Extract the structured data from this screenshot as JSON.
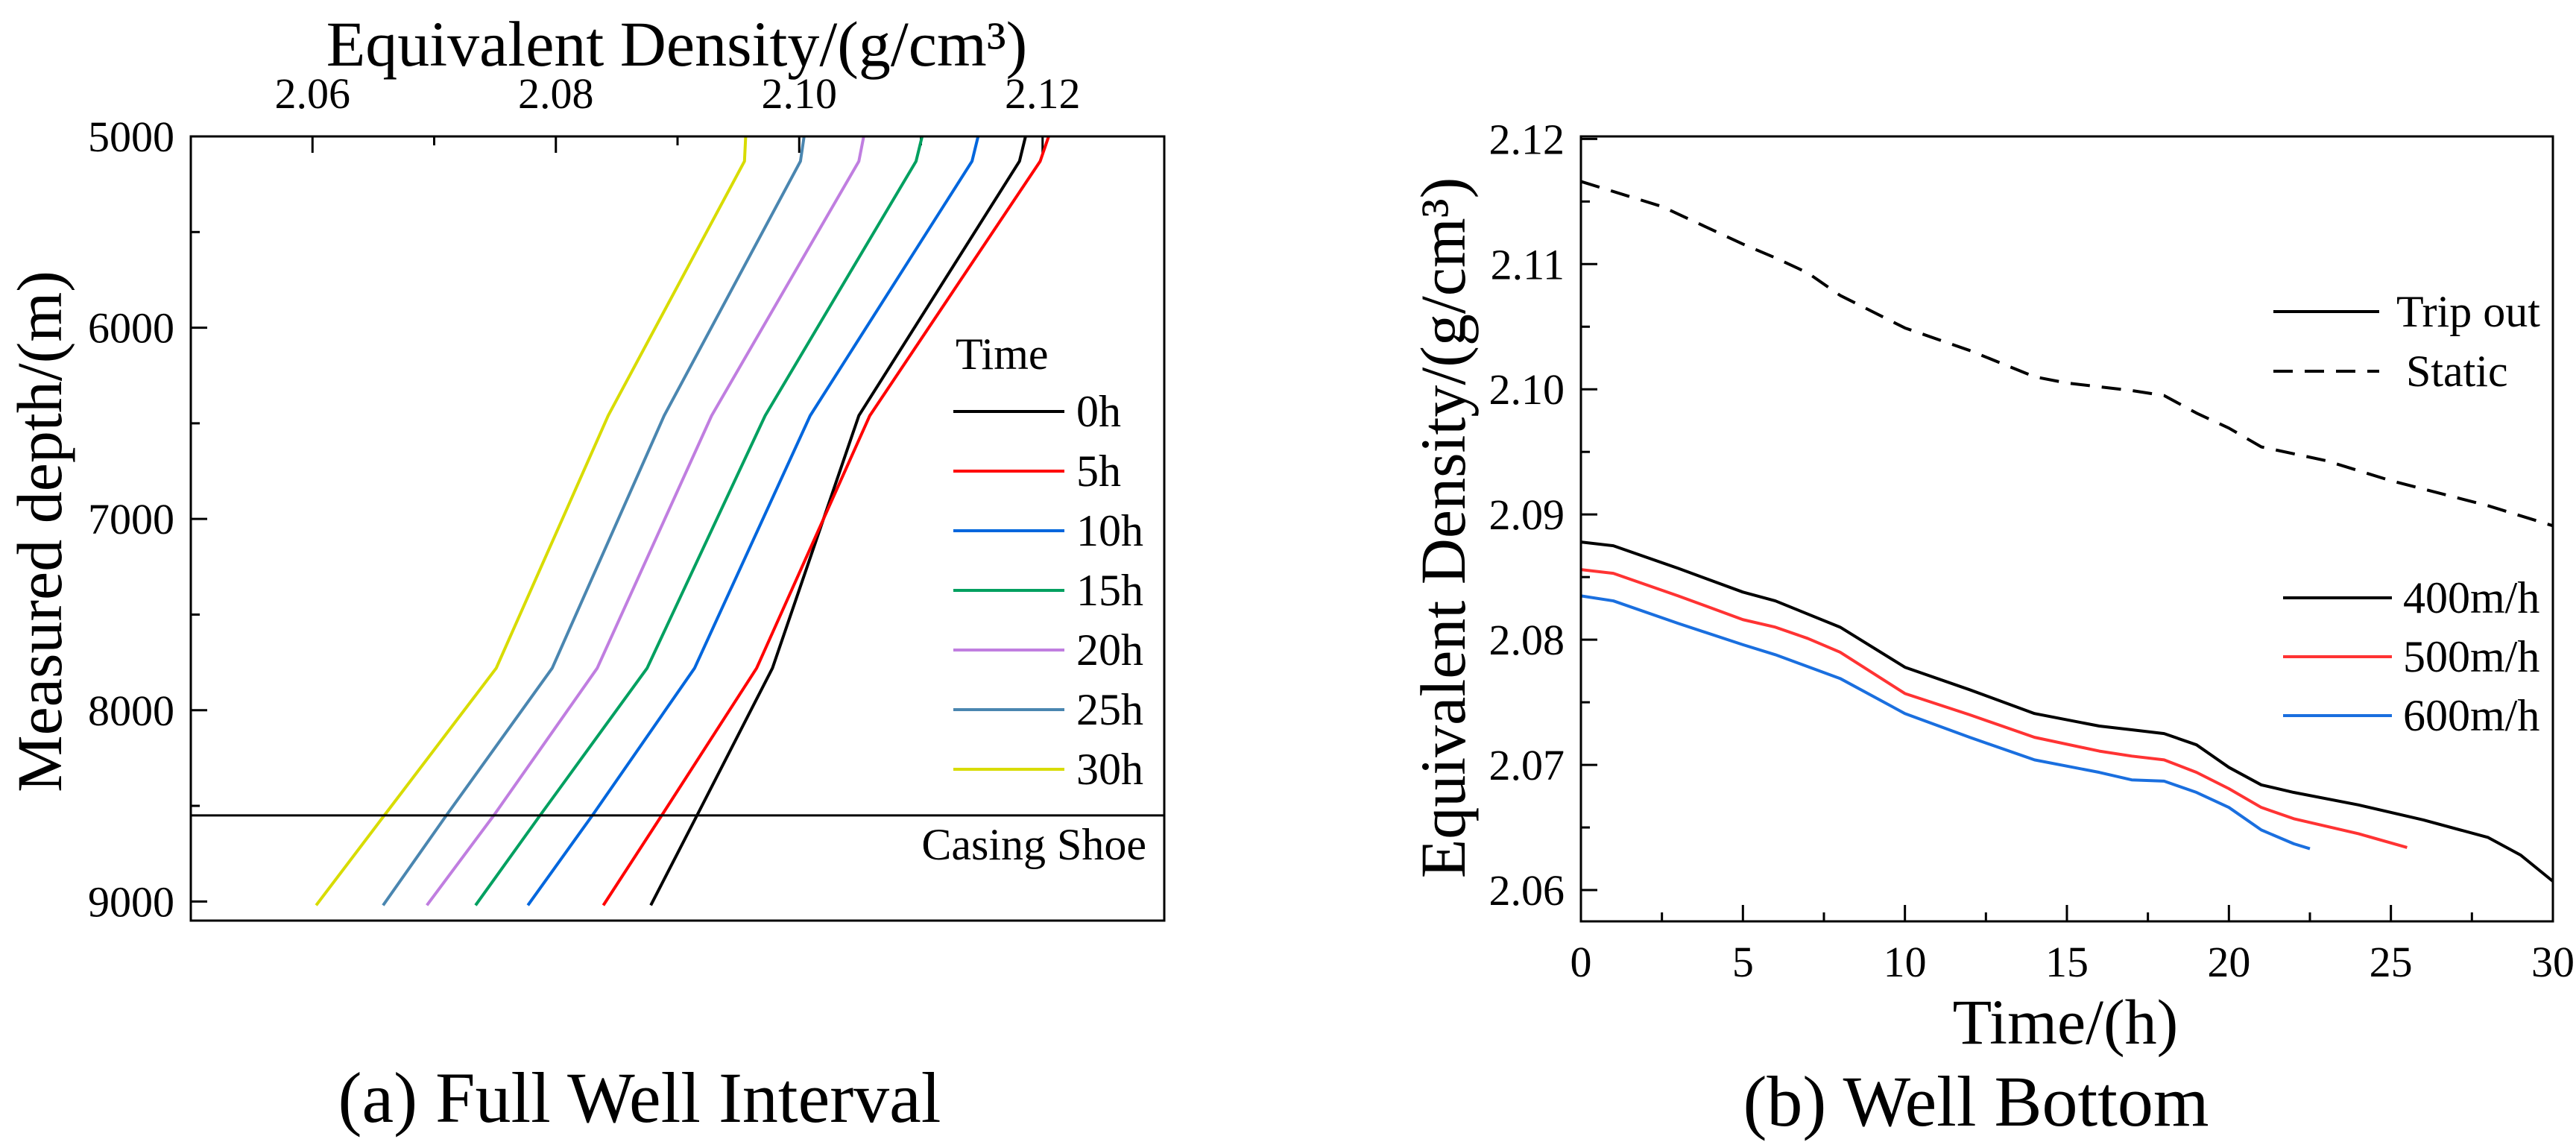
{
  "chart_data": [
    {
      "type": "line",
      "caption": "(a) Full Well Interval",
      "xlabel": "Equivalent Density/(g/cm³)",
      "ylabel": "Measured depth/(m)",
      "xlim": [
        2.05,
        2.13
      ],
      "ylim": [
        5000,
        9100
      ],
      "y_inverted": true,
      "x_axis_position": "top",
      "xticks": [
        "2.06",
        "2.08",
        "2.10",
        "2.12"
      ],
      "xtick_values": [
        2.06,
        2.08,
        2.1,
        2.12
      ],
      "yticks": [
        "5000",
        "6000",
        "7000",
        "8000",
        "9000"
      ],
      "ytick_values": [
        5000,
        6000,
        7000,
        8000,
        9000
      ],
      "legend_title": "Time",
      "legend_placement": "right",
      "annotation": {
        "label": "Casing Shoe",
        "depth": 8550
      },
      "depths": [
        5000,
        5130,
        6460,
        7780,
        8550,
        9020
      ],
      "series": [
        {
          "name": "0h",
          "color": "#000000",
          "values": [
            2.1186,
            2.1181,
            2.1049,
            2.0978,
            2.0916,
            2.0878
          ]
        },
        {
          "name": "5h",
          "color": "#ff0000",
          "values": [
            2.1205,
            2.1198,
            2.1058,
            2.0965,
            2.0887,
            2.0839
          ]
        },
        {
          "name": "10h",
          "color": "#0066dd",
          "values": [
            2.1147,
            2.1142,
            2.1009,
            2.0914,
            2.083,
            2.0777
          ]
        },
        {
          "name": "15h",
          "color": "#00a060",
          "values": [
            2.1101,
            2.1096,
            2.0972,
            2.0875,
            2.0787,
            2.0734
          ]
        },
        {
          "name": "20h",
          "color": "#c07ee0",
          "values": [
            2.1053,
            2.1049,
            2.0928,
            2.0834,
            2.0749,
            2.0694
          ]
        },
        {
          "name": "25h",
          "color": "#4a86b0",
          "values": [
            2.1004,
            2.1001,
            2.0889,
            2.0797,
            2.071,
            2.0658
          ]
        },
        {
          "name": "30h",
          "color": "#d8dc00",
          "values": [
            2.0956,
            2.0955,
            2.0843,
            2.0751,
            2.0659,
            2.0603
          ]
        }
      ]
    },
    {
      "type": "line",
      "caption": "(b) Well Bottom",
      "xlabel": "Time/(h)",
      "ylabel": "Equivalent Density/(g/cm³)",
      "xlim": [
        0,
        30
      ],
      "ylim": [
        2.0575,
        2.1202
      ],
      "xticks": [
        "0",
        "5",
        "10",
        "15",
        "20",
        "25",
        "30"
      ],
      "xtick_values": [
        0,
        5,
        10,
        15,
        20,
        25,
        30
      ],
      "yticks": [
        "2.06",
        "2.07",
        "2.08",
        "2.09",
        "2.10",
        "2.11",
        "2.12"
      ],
      "ytick_values": [
        2.06,
        2.07,
        2.08,
        2.09,
        2.1,
        2.11,
        2.12
      ],
      "legend_style": [
        {
          "name": "Trip out",
          "dash": false
        },
        {
          "name": "Static",
          "dash": true
        }
      ],
      "legend_placement": "right",
      "series": [
        {
          "name": "Static",
          "color": "#000000",
          "dash": true,
          "x": [
            0,
            2.5,
            5,
            6,
            7,
            8,
            10,
            12,
            14,
            15,
            16,
            17,
            18,
            19,
            20,
            21,
            23,
            25,
            28,
            30
          ],
          "y": [
            2.1166,
            2.1146,
            2.1116,
            2.1105,
            2.1093,
            2.1075,
            2.1049,
            2.1031,
            2.101,
            2.1005,
            2.1002,
            2.0999,
            2.0995,
            2.0981,
            2.0969,
            2.0954,
            2.0943,
            2.0927,
            2.0907,
            2.0891
          ]
        },
        {
          "name": "400m/h",
          "color": "#000000",
          "dash": false,
          "x": [
            0,
            1,
            3,
            5,
            6,
            8,
            10,
            12,
            14,
            16,
            17,
            18,
            19,
            20,
            21,
            22,
            24,
            26,
            28,
            29,
            30
          ],
          "y": [
            2.0878,
            2.0875,
            2.0857,
            2.0838,
            2.0831,
            2.081,
            2.0778,
            2.076,
            2.0741,
            2.0731,
            2.0728,
            2.0725,
            2.0716,
            2.0698,
            2.0684,
            2.0678,
            2.0668,
            2.0656,
            2.0642,
            2.0628,
            2.0607
          ]
        },
        {
          "name": "500m/h",
          "color": "#ff3333",
          "dash": false,
          "x": [
            0,
            1,
            3,
            5,
            6,
            7,
            8,
            10,
            12,
            14,
            16,
            17,
            18,
            19,
            20,
            21,
            22,
            24,
            25.5
          ],
          "y": [
            2.0856,
            2.0853,
            2.0835,
            2.0816,
            2.081,
            2.0801,
            2.079,
            2.0757,
            2.074,
            2.0722,
            2.0711,
            2.0707,
            2.0704,
            2.0694,
            2.0681,
            2.0666,
            2.0657,
            2.0645,
            2.0634
          ]
        },
        {
          "name": "600m/h",
          "color": "#1a6fdf",
          "dash": false,
          "x": [
            0,
            1,
            3,
            5,
            6,
            8,
            10,
            12,
            14,
            16,
            17,
            18,
            19,
            20,
            21,
            22,
            22.5
          ],
          "y": [
            2.0835,
            2.0831,
            2.0813,
            2.0796,
            2.0788,
            2.0769,
            2.0741,
            2.0722,
            2.0704,
            2.0694,
            2.0688,
            2.0687,
            2.0678,
            2.0666,
            2.0648,
            2.0637,
            2.0633
          ]
        }
      ]
    }
  ]
}
